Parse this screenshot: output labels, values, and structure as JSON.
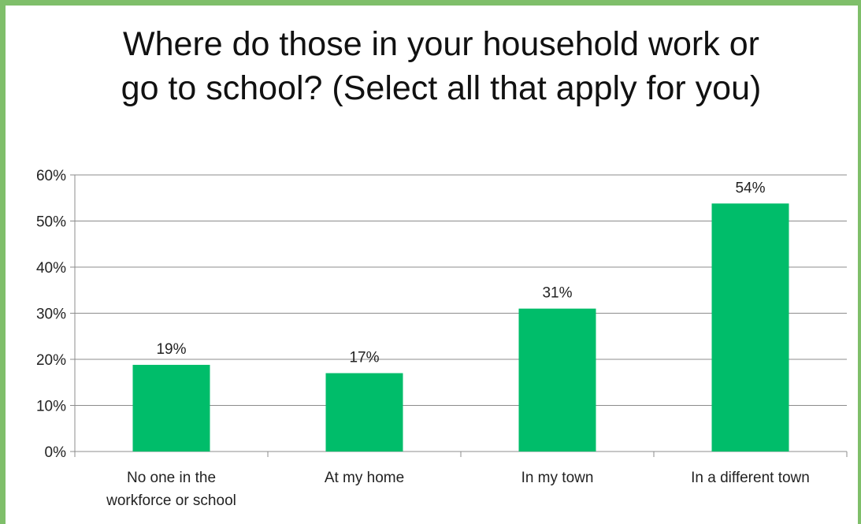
{
  "chart_data": {
    "type": "bar",
    "title": "Where do those in your household work or go to school? (Select all that apply for you)",
    "categories": [
      [
        "No one in the",
        "workforce or school"
      ],
      [
        "At my home"
      ],
      [
        "In my town"
      ],
      [
        "In a different town"
      ]
    ],
    "values": [
      0.19,
      0.17,
      0.31,
      0.54
    ],
    "plotted_values": [
      18.8,
      17.0,
      31.0,
      53.8
    ],
    "data_labels": [
      "19%",
      "17%",
      "31%",
      "54%"
    ],
    "yticks": [
      "0%",
      "10%",
      "20%",
      "30%",
      "40%",
      "50%",
      "60%"
    ],
    "ylim": [
      0,
      60
    ],
    "grid": true,
    "legend": "none",
    "bar_color": "#00bd6a",
    "grid_color": "#8c8c8c",
    "axis_color": "#8c8c8c",
    "frame_color": "#7fbf6a"
  }
}
